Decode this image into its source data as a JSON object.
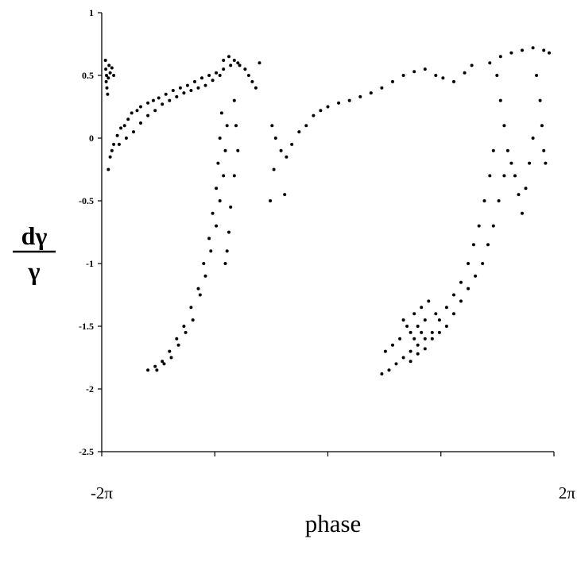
{
  "chart_data": {
    "type": "scatter",
    "title": "",
    "xlabel": "phase",
    "ylabel_numerator": "dγ",
    "ylabel_denominator": "γ",
    "xlim": [
      -6.2832,
      6.2832
    ],
    "ylim": [
      -2.5,
      1
    ],
    "x_tick_labels": [
      {
        "value": -6.2832,
        "label": "-2π"
      },
      {
        "value": 6.2832,
        "label": "2π"
      }
    ],
    "x_minor_ticks": [
      -3.1416,
      0,
      3.1416
    ],
    "y_ticks": [
      {
        "value": 1,
        "label": "1"
      },
      {
        "value": 0.5,
        "label": "0.5"
      },
      {
        "value": 0,
        "label": "0"
      },
      {
        "value": -0.5,
        "label": "-0.5"
      },
      {
        "value": -1,
        "label": "-1"
      },
      {
        "value": -1.5,
        "label": "-1.5"
      },
      {
        "value": -2,
        "label": "-2"
      },
      {
        "value": -2.5,
        "label": "-2.5"
      }
    ],
    "grid": false,
    "marker_color": "#000000",
    "series": [
      {
        "points": [
          [
            -6.18,
            0.62
          ],
          [
            -6.17,
            0.55
          ],
          [
            -6.15,
            0.5
          ],
          [
            -6.16,
            0.45
          ],
          [
            -6.14,
            0.4
          ],
          [
            -6.12,
            0.35
          ],
          [
            -6.1,
            0.48
          ],
          [
            -6.08,
            0.58
          ],
          [
            -6.05,
            0.52
          ],
          [
            -6.0,
            0.56
          ],
          [
            -5.95,
            0.5
          ],
          [
            -6.1,
            -0.25
          ],
          [
            -6.05,
            -0.15
          ],
          [
            -5.95,
            -0.05
          ],
          [
            -5.85,
            0.02
          ],
          [
            -5.75,
            0.08
          ],
          [
            -5.65,
            0.1
          ],
          [
            -5.55,
            0.15
          ],
          [
            -5.45,
            0.2
          ],
          [
            -5.3,
            0.22
          ],
          [
            -5.2,
            0.25
          ],
          [
            -5.0,
            0.28
          ],
          [
            -4.85,
            0.3
          ],
          [
            -4.7,
            0.32
          ],
          [
            -4.5,
            0.35
          ],
          [
            -4.3,
            0.38
          ],
          [
            -4.1,
            0.4
          ],
          [
            -3.9,
            0.42
          ],
          [
            -3.7,
            0.45
          ],
          [
            -3.5,
            0.48
          ],
          [
            -3.3,
            0.5
          ],
          [
            -3.1,
            0.52
          ],
          [
            -2.9,
            0.55
          ],
          [
            -2.7,
            0.58
          ],
          [
            -2.5,
            0.6
          ],
          [
            -6.0,
            -0.1
          ],
          [
            -5.8,
            -0.05
          ],
          [
            -5.6,
            0.0
          ],
          [
            -5.4,
            0.05
          ],
          [
            -5.2,
            0.12
          ],
          [
            -5.0,
            0.18
          ],
          [
            -4.8,
            0.22
          ],
          [
            -4.6,
            0.27
          ],
          [
            -4.4,
            0.3
          ],
          [
            -4.2,
            0.33
          ],
          [
            -4.0,
            0.36
          ],
          [
            -3.8,
            0.38
          ],
          [
            -3.6,
            0.4
          ],
          [
            -3.4,
            0.42
          ],
          [
            -3.2,
            0.46
          ],
          [
            -3.0,
            0.5
          ],
          [
            -2.9,
            0.62
          ],
          [
            -2.75,
            0.65
          ],
          [
            -2.6,
            0.62
          ],
          [
            -2.45,
            0.58
          ],
          [
            -2.3,
            0.55
          ],
          [
            -2.2,
            0.5
          ],
          [
            -2.1,
            0.45
          ],
          [
            -2.0,
            0.4
          ],
          [
            -1.9,
            0.6
          ],
          [
            -2.95,
            0.2
          ],
          [
            -3.0,
            0.0
          ],
          [
            -3.05,
            -0.2
          ],
          [
            -3.1,
            -0.4
          ],
          [
            -3.2,
            -0.6
          ],
          [
            -3.3,
            -0.8
          ],
          [
            -3.45,
            -1.0
          ],
          [
            -3.6,
            -1.2
          ],
          [
            -3.8,
            -1.35
          ],
          [
            -4.0,
            -1.5
          ],
          [
            -4.2,
            -1.6
          ],
          [
            -4.4,
            -1.7
          ],
          [
            -4.6,
            -1.78
          ],
          [
            -4.8,
            -1.82
          ],
          [
            -5.0,
            -1.85
          ],
          [
            -2.8,
            0.1
          ],
          [
            -2.85,
            -0.1
          ],
          [
            -2.9,
            -0.3
          ],
          [
            -3.0,
            -0.5
          ],
          [
            -3.1,
            -0.7
          ],
          [
            -3.25,
            -0.9
          ],
          [
            -3.4,
            -1.1
          ],
          [
            -3.55,
            -1.25
          ],
          [
            -3.75,
            -1.45
          ],
          [
            -3.95,
            -1.55
          ],
          [
            -4.15,
            -1.65
          ],
          [
            -4.35,
            -1.75
          ],
          [
            -4.55,
            -1.8
          ],
          [
            -4.75,
            -1.85
          ],
          [
            -2.6,
            0.3
          ],
          [
            -2.55,
            0.1
          ],
          [
            -2.5,
            -0.1
          ],
          [
            -2.6,
            -0.3
          ],
          [
            -2.7,
            -0.55
          ],
          [
            -2.75,
            -0.75
          ],
          [
            -2.8,
            -0.9
          ],
          [
            -2.85,
            -1.0
          ],
          [
            -1.55,
            0.1
          ],
          [
            -1.45,
            0.0
          ],
          [
            -1.3,
            -0.1
          ],
          [
            -1.15,
            -0.15
          ],
          [
            -1.0,
            -0.05
          ],
          [
            -0.8,
            0.05
          ],
          [
            -0.6,
            0.1
          ],
          [
            -0.4,
            0.18
          ],
          [
            -0.2,
            0.22
          ],
          [
            0.0,
            0.25
          ],
          [
            0.3,
            0.28
          ],
          [
            0.6,
            0.3
          ],
          [
            0.9,
            0.33
          ],
          [
            1.2,
            0.36
          ],
          [
            1.5,
            0.4
          ],
          [
            1.8,
            0.45
          ],
          [
            2.1,
            0.5
          ],
          [
            2.4,
            0.53
          ],
          [
            2.7,
            0.55
          ],
          [
            3.0,
            0.5
          ],
          [
            3.2,
            0.48
          ],
          [
            3.5,
            0.45
          ],
          [
            3.8,
            0.52
          ],
          [
            4.0,
            0.58
          ],
          [
            -1.5,
            -0.25
          ],
          [
            -1.2,
            -0.45
          ],
          [
            -1.6,
            -0.5
          ],
          [
            4.5,
            0.6
          ],
          [
            4.8,
            0.65
          ],
          [
            5.1,
            0.68
          ],
          [
            5.4,
            0.7
          ],
          [
            5.7,
            0.72
          ],
          [
            6.0,
            0.7
          ],
          [
            6.15,
            0.68
          ],
          [
            5.8,
            0.5
          ],
          [
            5.9,
            0.3
          ],
          [
            5.95,
            0.1
          ],
          [
            6.0,
            -0.1
          ],
          [
            6.05,
            -0.2
          ],
          [
            5.7,
            0.0
          ],
          [
            5.6,
            -0.2
          ],
          [
            5.5,
            -0.4
          ],
          [
            5.4,
            -0.6
          ],
          [
            5.3,
            -0.45
          ],
          [
            5.2,
            -0.3
          ],
          [
            5.1,
            -0.2
          ],
          [
            5.0,
            -0.1
          ],
          [
            4.9,
            0.1
          ],
          [
            4.8,
            0.3
          ],
          [
            4.7,
            0.5
          ],
          [
            4.6,
            -0.1
          ],
          [
            4.5,
            -0.3
          ],
          [
            4.35,
            -0.5
          ],
          [
            4.2,
            -0.7
          ],
          [
            4.05,
            -0.85
          ],
          [
            3.9,
            -1.0
          ],
          [
            3.7,
            -1.15
          ],
          [
            3.5,
            -1.25
          ],
          [
            3.3,
            -1.35
          ],
          [
            3.1,
            -1.45
          ],
          [
            2.9,
            -1.55
          ],
          [
            2.7,
            -1.6
          ],
          [
            2.5,
            -1.65
          ],
          [
            2.3,
            -1.7
          ],
          [
            2.1,
            -1.75
          ],
          [
            1.9,
            -1.8
          ],
          [
            1.7,
            -1.85
          ],
          [
            1.5,
            -1.88
          ],
          [
            4.9,
            -0.3
          ],
          [
            4.75,
            -0.5
          ],
          [
            4.6,
            -0.7
          ],
          [
            4.45,
            -0.85
          ],
          [
            4.3,
            -1.0
          ],
          [
            4.1,
            -1.1
          ],
          [
            3.9,
            -1.2
          ],
          [
            3.7,
            -1.3
          ],
          [
            3.5,
            -1.4
          ],
          [
            3.3,
            -1.5
          ],
          [
            3.1,
            -1.55
          ],
          [
            2.9,
            -1.6
          ],
          [
            2.7,
            -1.68
          ],
          [
            2.5,
            -1.72
          ],
          [
            2.3,
            -1.78
          ],
          [
            2.2,
            -1.5
          ],
          [
            2.4,
            -1.4
          ],
          [
            2.6,
            -1.35
          ],
          [
            2.8,
            -1.3
          ],
          [
            2.5,
            -1.5
          ],
          [
            2.3,
            -1.55
          ],
          [
            2.0,
            -1.6
          ],
          [
            1.8,
            -1.65
          ],
          [
            1.6,
            -1.7
          ],
          [
            2.1,
            -1.45
          ],
          [
            2.7,
            -1.45
          ],
          [
            3.0,
            -1.4
          ],
          [
            2.4,
            -1.6
          ],
          [
            2.6,
            -1.55
          ]
        ]
      }
    ]
  }
}
